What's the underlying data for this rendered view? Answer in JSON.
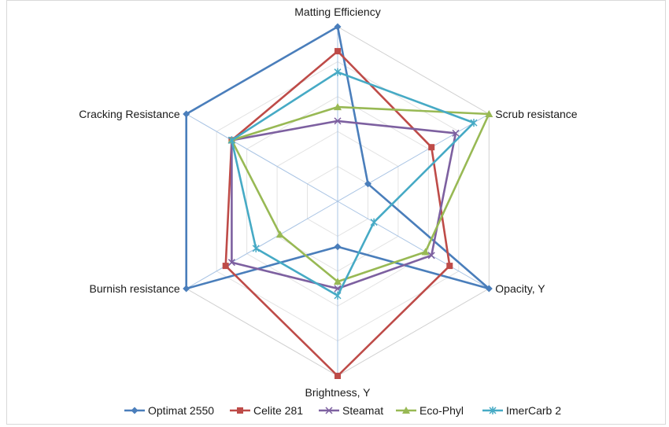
{
  "chart_data": {
    "type": "radar",
    "axes": [
      "Matting Efficiency",
      "Scrub resistance",
      "Opacity, Y",
      "Brightness, Y",
      "Burnish resistance",
      "Cracking Resistance"
    ],
    "range": [
      0,
      5
    ],
    "rings": 5,
    "grid": true,
    "legend_position": "bottom",
    "series": [
      {
        "name": "Optimat 2550",
        "color": "#4a7ebb",
        "marker": "diamond",
        "values": [
          5,
          1,
          5,
          1.3,
          5,
          5
        ]
      },
      {
        "name": "Celite 281",
        "color": "#be4b48",
        "marker": "square",
        "values": [
          4.3,
          3.1,
          3.7,
          5,
          3.7,
          3.5
        ]
      },
      {
        "name": "Steamat",
        "color": "#7d60a0",
        "marker": "x",
        "values": [
          2.3,
          3.9,
          3.1,
          2.5,
          3.5,
          3.5
        ]
      },
      {
        "name": "Eco-Phyl",
        "color": "#98b954",
        "marker": "triangle",
        "values": [
          2.7,
          5,
          2.9,
          2.3,
          1.9,
          3.5
        ]
      },
      {
        "name": "ImerCarb 2",
        "color": "#46aac5",
        "marker": "star",
        "values": [
          3.7,
          4.5,
          1.2,
          2.7,
          2.7,
          3.5
        ]
      }
    ]
  }
}
